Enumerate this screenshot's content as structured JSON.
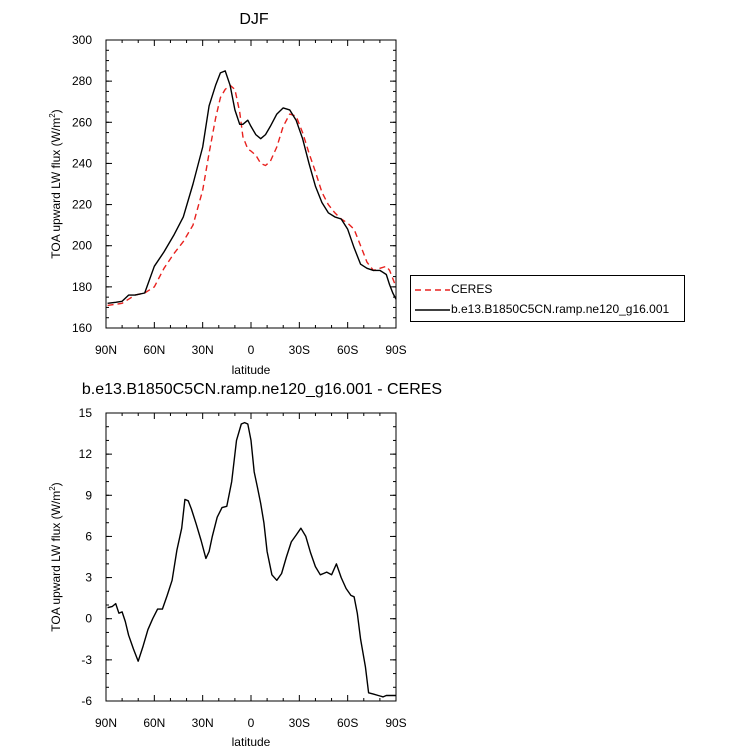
{
  "chart_data": [
    {
      "type": "line",
      "title": "DJF",
      "xlabel": "latitude",
      "ylabel": "TOA upward LW flux (W/m",
      "ylabel_sup": "2",
      "ylabel_end": ")",
      "xlim": [
        -90,
        90
      ],
      "ylim": [
        160,
        300
      ],
      "xticks": [
        -90,
        -60,
        -30,
        0,
        30,
        60,
        90
      ],
      "xticklabels": [
        "90N",
        "60N",
        "30N",
        "0",
        "30S",
        "60S",
        "90S"
      ],
      "yticks": [
        160,
        180,
        200,
        220,
        240,
        260,
        280,
        300
      ],
      "yticklabels": [
        "160",
        "180",
        "200",
        "220",
        "240",
        "260",
        "280",
        "300"
      ],
      "grid": false,
      "legend": "right",
      "series": [
        {
          "name": "CERES",
          "color": "#e8211e",
          "style": "dashed",
          "x": [
            -89,
            -84,
            -80,
            -76,
            -72,
            -66,
            -60,
            -54,
            -48,
            -42,
            -36,
            -30,
            -26,
            -22,
            -19,
            -16,
            -13,
            -10,
            -7,
            -5,
            -2,
            0,
            3,
            6,
            9,
            12,
            16,
            20,
            24,
            28,
            32,
            36,
            40,
            44,
            48,
            52,
            56,
            60,
            64,
            68,
            72,
            76,
            80,
            84,
            86,
            88,
            90
          ],
          "y": [
            171,
            171.5,
            172,
            174,
            176,
            177,
            180,
            189,
            196,
            202,
            210,
            227,
            245,
            262,
            272,
            276,
            278,
            276,
            265,
            253,
            247,
            246,
            244,
            240,
            239,
            241,
            248,
            258,
            264,
            263,
            255,
            245,
            236,
            226,
            220,
            216,
            213,
            211,
            208,
            200,
            192,
            188,
            189,
            190,
            188,
            184,
            180
          ]
        },
        {
          "name": "b.e13.B1850C5CN.ramp.ne120_g16.001",
          "color": "#000000",
          "style": "solid",
          "x": [
            -89,
            -84,
            -80,
            -76,
            -72,
            -66,
            -60,
            -54,
            -48,
            -42,
            -36,
            -30,
            -26,
            -22,
            -19,
            -16,
            -13,
            -10,
            -7,
            -5,
            -2,
            0,
            3,
            6,
            9,
            12,
            16,
            20,
            24,
            28,
            32,
            36,
            40,
            44,
            48,
            52,
            56,
            60,
            64,
            68,
            72,
            76,
            80,
            84,
            86,
            88,
            90
          ],
          "y": [
            172,
            172.5,
            173,
            176,
            176,
            177,
            190,
            197,
            205,
            214,
            230,
            248,
            268,
            278,
            284,
            285,
            278,
            266,
            259,
            259,
            261,
            258,
            254,
            252,
            254,
            258,
            264,
            267,
            266,
            261,
            252,
            240,
            229,
            221,
            216,
            214,
            213,
            208,
            199,
            191,
            189,
            188,
            188,
            186,
            181,
            177,
            174
          ]
        }
      ]
    },
    {
      "type": "line",
      "title": "b.e13.B1850C5CN.ramp.ne120_g16.001 - CERES",
      "xlabel": "latitude",
      "ylabel": "TOA upward LW flux (W/m",
      "ylabel_sup": "2",
      "ylabel_end": ")",
      "xlim": [
        -90,
        90
      ],
      "ylim": [
        -6,
        15
      ],
      "xticks": [
        -90,
        -60,
        -30,
        0,
        30,
        60,
        90
      ],
      "xticklabels": [
        "90N",
        "60N",
        "30N",
        "0",
        "30S",
        "60S",
        "90S"
      ],
      "yticks": [
        -6,
        -3,
        0,
        3,
        6,
        9,
        12,
        15
      ],
      "yticklabels": [
        "-6",
        "-3",
        "0",
        "3",
        "6",
        "9",
        "12",
        "15"
      ],
      "grid": false,
      "series": [
        {
          "color": "#000000",
          "style": "solid",
          "x": [
            -89,
            -86,
            -84,
            -82,
            -80,
            -78,
            -76,
            -73,
            -70,
            -67,
            -64,
            -61,
            -58,
            -55,
            -52,
            -49,
            -46,
            -43,
            -41,
            -39,
            -37,
            -34,
            -31,
            -28,
            -26,
            -24,
            -21,
            -18,
            -15,
            -12,
            -9,
            -6,
            -4,
            -2,
            0,
            2,
            4,
            6,
            8,
            10,
            13,
            16,
            19,
            22,
            25,
            28,
            31,
            34,
            37,
            40,
            43,
            45,
            47,
            50,
            53,
            56,
            59,
            62,
            64,
            66,
            68,
            71,
            73,
            76,
            79,
            82,
            84,
            86,
            88,
            90
          ],
          "y": [
            0.8,
            0.9,
            1.1,
            0.4,
            0.5,
            -0.2,
            -1.2,
            -2.2,
            -3.1,
            -2.0,
            -0.8,
            0.0,
            0.7,
            0.7,
            1.7,
            2.8,
            5.0,
            6.6,
            8.7,
            8.6,
            8.0,
            6.9,
            5.7,
            4.4,
            4.9,
            6.0,
            7.4,
            8.1,
            8.2,
            10.0,
            13.0,
            14.2,
            14.3,
            14.2,
            13.0,
            10.7,
            9.6,
            8.4,
            7.0,
            4.9,
            3.2,
            2.8,
            3.3,
            4.5,
            5.6,
            6.1,
            6.6,
            6.0,
            4.8,
            3.8,
            3.2,
            3.3,
            3.4,
            3.2,
            4.0,
            3.0,
            2.2,
            1.7,
            1.6,
            0.4,
            -1.5,
            -3.5,
            -5.4,
            -5.5,
            -5.6,
            -5.7,
            -5.6,
            -5.6,
            -5.6,
            -5.6
          ]
        }
      ]
    }
  ],
  "legend": {
    "items": [
      {
        "label": "CERES",
        "color": "#e8211e",
        "style": "dashed"
      },
      {
        "label": "b.e13.B1850C5CN.ramp.ne120_g16.001",
        "color": "#000000",
        "style": "solid"
      }
    ]
  }
}
